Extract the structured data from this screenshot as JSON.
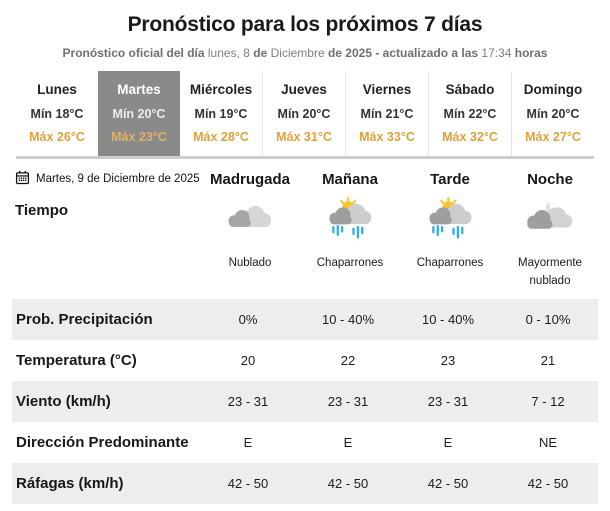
{
  "colors": {
    "accent_orange": "#E0A13C",
    "selected_tab_bg": "#8A8A8A",
    "selected_tab_day": "#FFFFFF",
    "selected_tab_min": "#ECECEC",
    "selected_tab_max": "#E2B161",
    "row_shade": "#EDEDED",
    "tabs_separator": "#CDCDCD",
    "rain_blue": "#2BB0E8",
    "sun_yellow": "#F6C42D"
  },
  "header": {
    "title": "Pronóstico para los próximos 7 días",
    "subtitle_parts": [
      {
        "text": "Pronóstico oficial del día ",
        "bold": true
      },
      {
        "text": "lunes, 8 ",
        "bold": false
      },
      {
        "text": "de ",
        "bold": true
      },
      {
        "text": "Diciembre ",
        "bold": false
      },
      {
        "text": "de 2025 ",
        "bold": true
      },
      {
        "text": "- actualizado a las ",
        "bold": true
      },
      {
        "text": "17:34 ",
        "bold": false
      },
      {
        "text": "horas",
        "bold": true
      }
    ]
  },
  "week_tabs": [
    {
      "day": "Lunes",
      "min": "Mín 18°C",
      "max": "Máx 26°C",
      "selected": false
    },
    {
      "day": "Martes",
      "min": "Mín 20°C",
      "max": "Máx 23°C",
      "selected": true
    },
    {
      "day": "Miércoles",
      "min": "Mín 19°C",
      "max": "Máx 28°C",
      "selected": false
    },
    {
      "day": "Jueves",
      "min": "Mín 20°C",
      "max": "Máx 31°C",
      "selected": false
    },
    {
      "day": "Viernes",
      "min": "Mín 21°C",
      "max": "Máx 33°C",
      "selected": false
    },
    {
      "day": "Sábado",
      "min": "Mín 22°C",
      "max": "Máx 32°C",
      "selected": false
    },
    {
      "day": "Domingo",
      "min": "Mín 20°C",
      "max": "Máx 27°C",
      "selected": false
    }
  ],
  "day_detail": {
    "date_label": "Martes, 9 de Diciembre de 2025",
    "calendar_icon": "calendar-icon",
    "columns": [
      "Madrugada",
      "Mañana",
      "Tarde",
      "Noche"
    ],
    "tiempo_label": "Tiempo",
    "conditions": [
      {
        "icon": "cloudy",
        "label": "Nublado"
      },
      {
        "icon": "sun-showers",
        "label": "Chaparrones"
      },
      {
        "icon": "sun-showers",
        "label": "Chaparrones"
      },
      {
        "icon": "mostly-cloudy-night",
        "label": "Mayormente nublado"
      }
    ],
    "rows": [
      {
        "label": "Prob. Precipitación",
        "values": [
          "0%",
          "10 - 40%",
          "10 - 40%",
          "0 - 10%"
        ]
      },
      {
        "label": "Temperatura (°C)",
        "values": [
          "20",
          "22",
          "23",
          "21"
        ]
      },
      {
        "label": "Viento (km/h)",
        "values": [
          "23 - 31",
          "23 - 31",
          "23 - 31",
          "7 - 12"
        ]
      },
      {
        "label": "Dirección Predominante",
        "values": [
          "E",
          "E",
          "E",
          "NE"
        ]
      },
      {
        "label": "Ráfagas (km/h)",
        "values": [
          "42 - 50",
          "42 - 50",
          "42 - 50",
          "42 - 50"
        ]
      }
    ]
  }
}
